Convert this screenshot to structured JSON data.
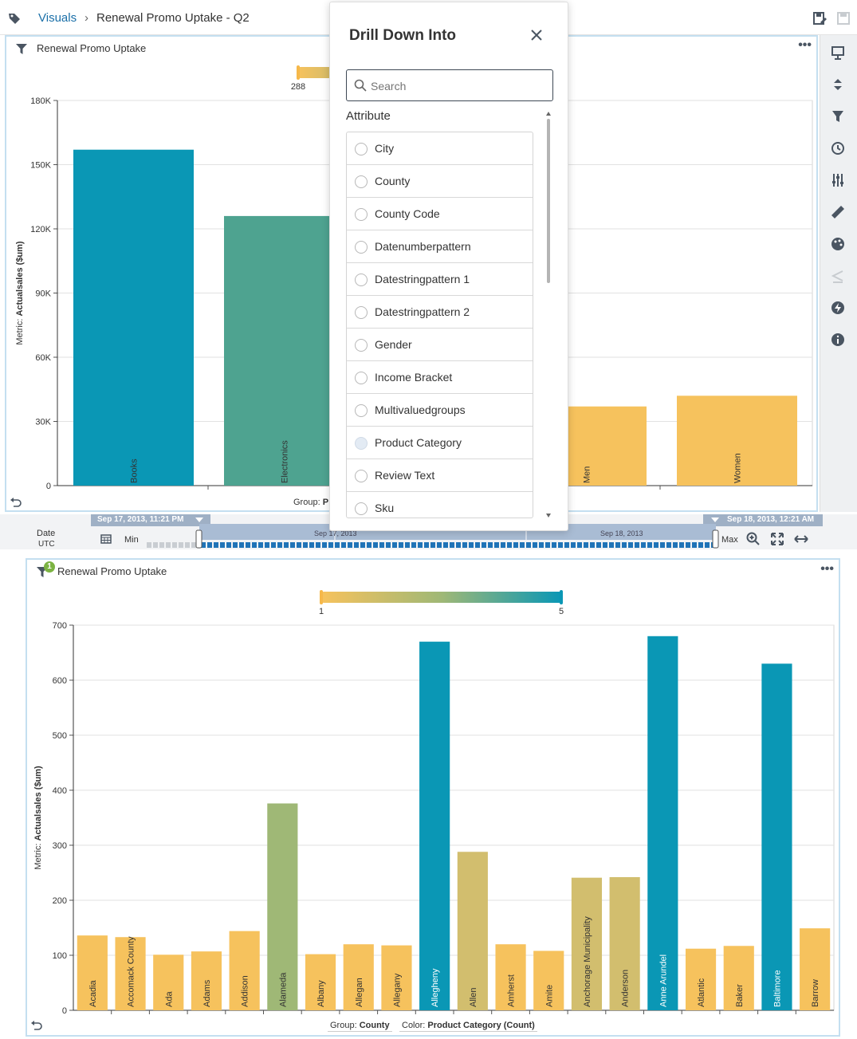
{
  "header": {
    "breadcrumb_root": "Visuals",
    "breadcrumb_separator": "›",
    "page_title": "Renewal Promo Uptake - Q2"
  },
  "visual1": {
    "title": "Renewal Promo Uptake",
    "color_legend_min": "288",
    "group_label_prefix": "Group:",
    "group_label_value": "P",
    "chart_data": {
      "type": "bar",
      "categories": [
        "Books",
        "Electronics",
        "Men",
        "Women"
      ],
      "values": [
        157000,
        126000,
        37000,
        42000
      ],
      "bar_colors": [
        "#0a97b5",
        "#4ea390",
        "#f6c25d",
        "#f6c25d"
      ],
      "ylabel_prefix": "Metric:",
      "ylabel": "Actualsales ($um)",
      "ylim": [
        0,
        180000
      ],
      "yticks": [
        "0",
        "30K",
        "60K",
        "90K",
        "120K",
        "150K",
        "180K"
      ]
    }
  },
  "timeline": {
    "label_line1": "Date",
    "label_line2": "UTC",
    "min_label": "Min",
    "max_label": "Max",
    "start_time": "Sep 17, 2013, 11:21 PM",
    "end_time": "Sep 18, 2013, 12:21 AM",
    "tick1": "Sep 17, 2013",
    "tick2": "Sep 18, 2013"
  },
  "popup": {
    "title": "Drill Down Into",
    "search_placeholder": "Search",
    "section_label": "Attribute",
    "items": [
      "City",
      "County",
      "County Code",
      "Datenumberpattern",
      "Datestringpattern 1",
      "Datestringpattern 2",
      "Gender",
      "Income Bracket",
      "Multivaluedgroups",
      "Product Category",
      "Review Text",
      "Sku"
    ]
  },
  "visual2": {
    "title": "Renewal Promo Uptake",
    "filter_badge": "1",
    "color_legend_min": "1",
    "color_legend_max": "5",
    "group_label_prefix": "Group:",
    "group_label_value": "County",
    "color_label_prefix": "Color:",
    "color_label_value": "Product Category (Count)",
    "chart_data": {
      "type": "bar",
      "categories": [
        "Acadia",
        "Accomack County",
        "Ada",
        "Adams",
        "Addison",
        "Alameda",
        "Albany",
        "Allegan",
        "Allegany",
        "Allegheny",
        "Allen",
        "Amherst",
        "Amite",
        "Anchorage Municipality",
        "Anderson",
        "Anne Arundel",
        "Atlantic",
        "Baker",
        "Baltimore",
        "Barrow"
      ],
      "values": [
        136,
        133,
        101,
        107,
        144,
        376,
        102,
        120,
        118,
        670,
        288,
        120,
        108,
        241,
        242,
        680,
        112,
        117,
        630,
        149
      ],
      "color_values": [
        1,
        1,
        1,
        1,
        1,
        3,
        1,
        1,
        1,
        5,
        2,
        1,
        1,
        2,
        2,
        5,
        1,
        1,
        5,
        1
      ],
      "bar_colors": [
        "#f6c25d",
        "#f6c25d",
        "#f6c25d",
        "#f6c25d",
        "#f6c25d",
        "#9fb876",
        "#f6c25d",
        "#f6c25d",
        "#f6c25d",
        "#0a97b5",
        "#d2be6e",
        "#f6c25d",
        "#f6c25d",
        "#d2be6e",
        "#d2be6e",
        "#0a97b5",
        "#f6c25d",
        "#f6c25d",
        "#0a97b5",
        "#f6c25d"
      ],
      "ylabel_prefix": "Metric:",
      "ylabel": "Actualsales ($um)",
      "ylim": [
        0,
        700
      ],
      "yticks": [
        "0",
        "100",
        "200",
        "300",
        "400",
        "500",
        "600",
        "700"
      ]
    }
  }
}
